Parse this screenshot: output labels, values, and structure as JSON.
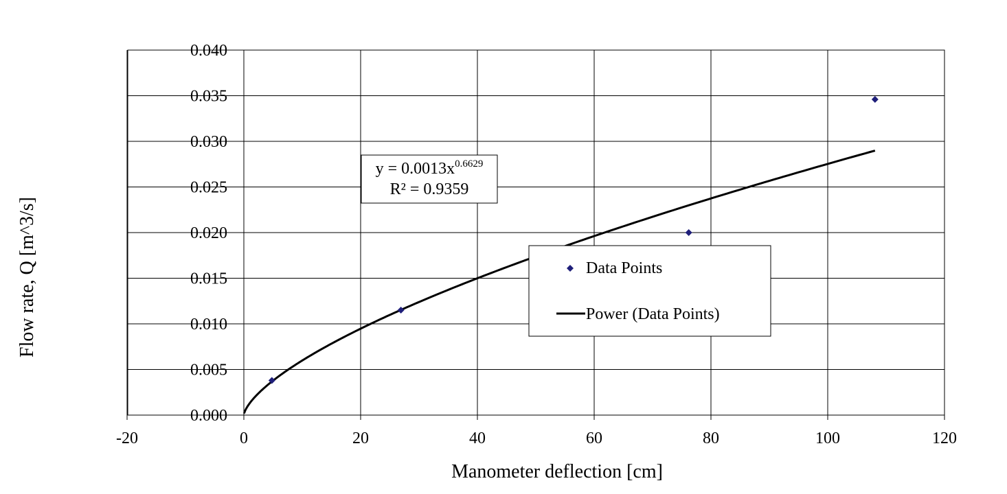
{
  "chart_data": {
    "type": "scatter",
    "title": "",
    "xlabel": "Manometer deflection [cm]",
    "ylabel": "Flow rate, Q [m^3/s]",
    "xlim": [
      -20,
      120
    ],
    "ylim": [
      0,
      0.04
    ],
    "x_ticks": [
      -20,
      0,
      20,
      40,
      60,
      80,
      100,
      120
    ],
    "x_tick_labels": [
      "-20",
      "0",
      "20",
      "40",
      "60",
      "80",
      "100",
      "120"
    ],
    "y_ticks": [
      0,
      0.005,
      0.01,
      0.015,
      0.02,
      0.025,
      0.03,
      0.035,
      0.04
    ],
    "y_tick_labels": [
      "0.000",
      "0.005",
      "0.010",
      "0.015",
      "0.020",
      "0.025",
      "0.030",
      "0.035",
      "0.040"
    ],
    "grid": true,
    "legend_position": "center-right",
    "series": [
      {
        "name": "Data Points",
        "kind": "scatter",
        "marker": "diamond",
        "color": "#1f1f7a",
        "x": [
          4.8,
          26.9,
          76.2,
          108.1
        ],
        "y": [
          0.0038,
          0.0115,
          0.02,
          0.0346
        ]
      },
      {
        "name": "Power (Data Points)",
        "kind": "trendline",
        "color": "#000000",
        "coefficient": 0.0013,
        "exponent": 0.6629,
        "x_range": [
          0.05,
          108.1
        ]
      }
    ],
    "annotation": {
      "equation_prefix": "y = 0.0013x",
      "equation_exponent": "0.6629",
      "r_squared": "R² = 0.9359"
    }
  }
}
